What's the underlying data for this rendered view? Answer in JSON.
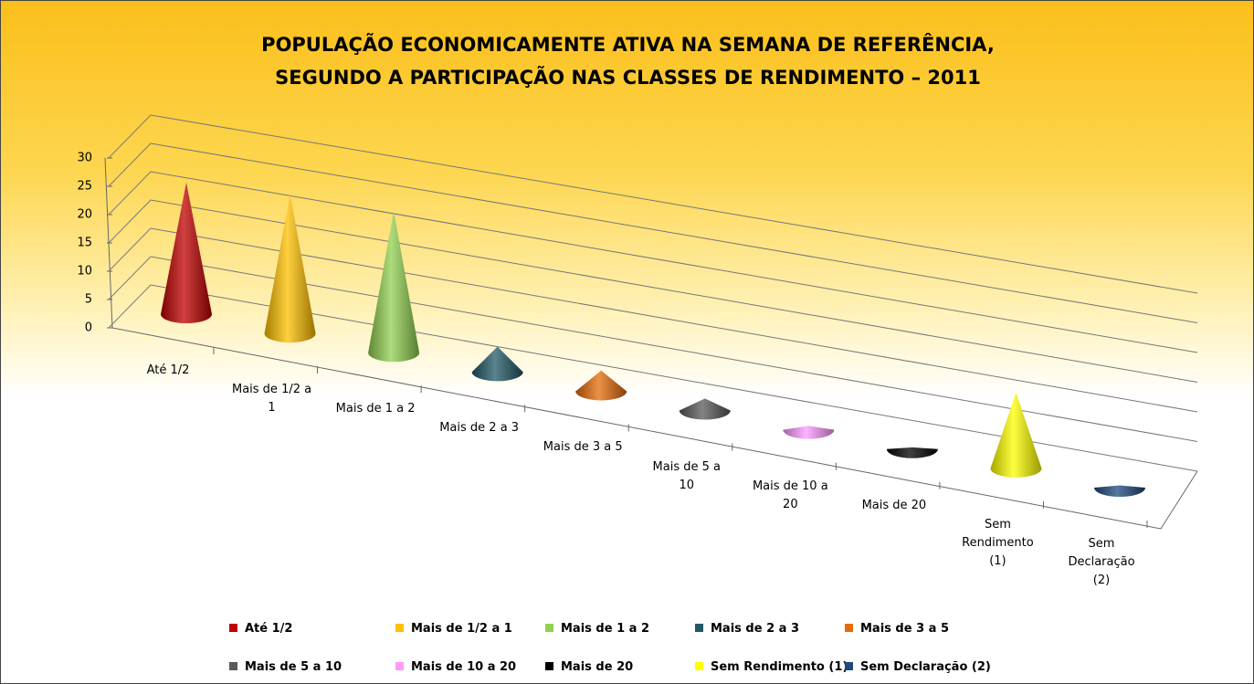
{
  "chart_data": {
    "type": "cone",
    "title": "POPULAÇÃO ECONOMICAMENTE ATIVA NA SEMANA DE REFERÊNCIA, SEGUNDO A PARTICIPAÇÃO  NAS CLASSES DE RENDIMENTO – 2011",
    "categories": [
      "Até 1/2",
      "Mais de  1/2 a 1",
      "Mais de 1 a 2",
      "Mais de 2 a 3",
      "Mais de 3 a 5",
      "Mais de 5 a 10",
      "Mais de 10 a 20",
      "Mais de 20",
      "Sem Rendimento (1)",
      "Sem Declaração (2)"
    ],
    "values": [
      22.9,
      24.2,
      24.6,
      4.4,
      3.6,
      2.1,
      0.7,
      0.3,
      13.2,
      0.4
    ],
    "colors": [
      "#c00000",
      "#ffc000",
      "#92d050",
      "#215967",
      "#e46c0a",
      "#595959",
      "#ff99ff",
      "#000000",
      "#ffff00",
      "#1f497d"
    ],
    "ylim": [
      0,
      30
    ],
    "yticks": [
      0,
      5,
      10,
      15,
      20,
      25,
      30
    ],
    "grid": true
  }
}
